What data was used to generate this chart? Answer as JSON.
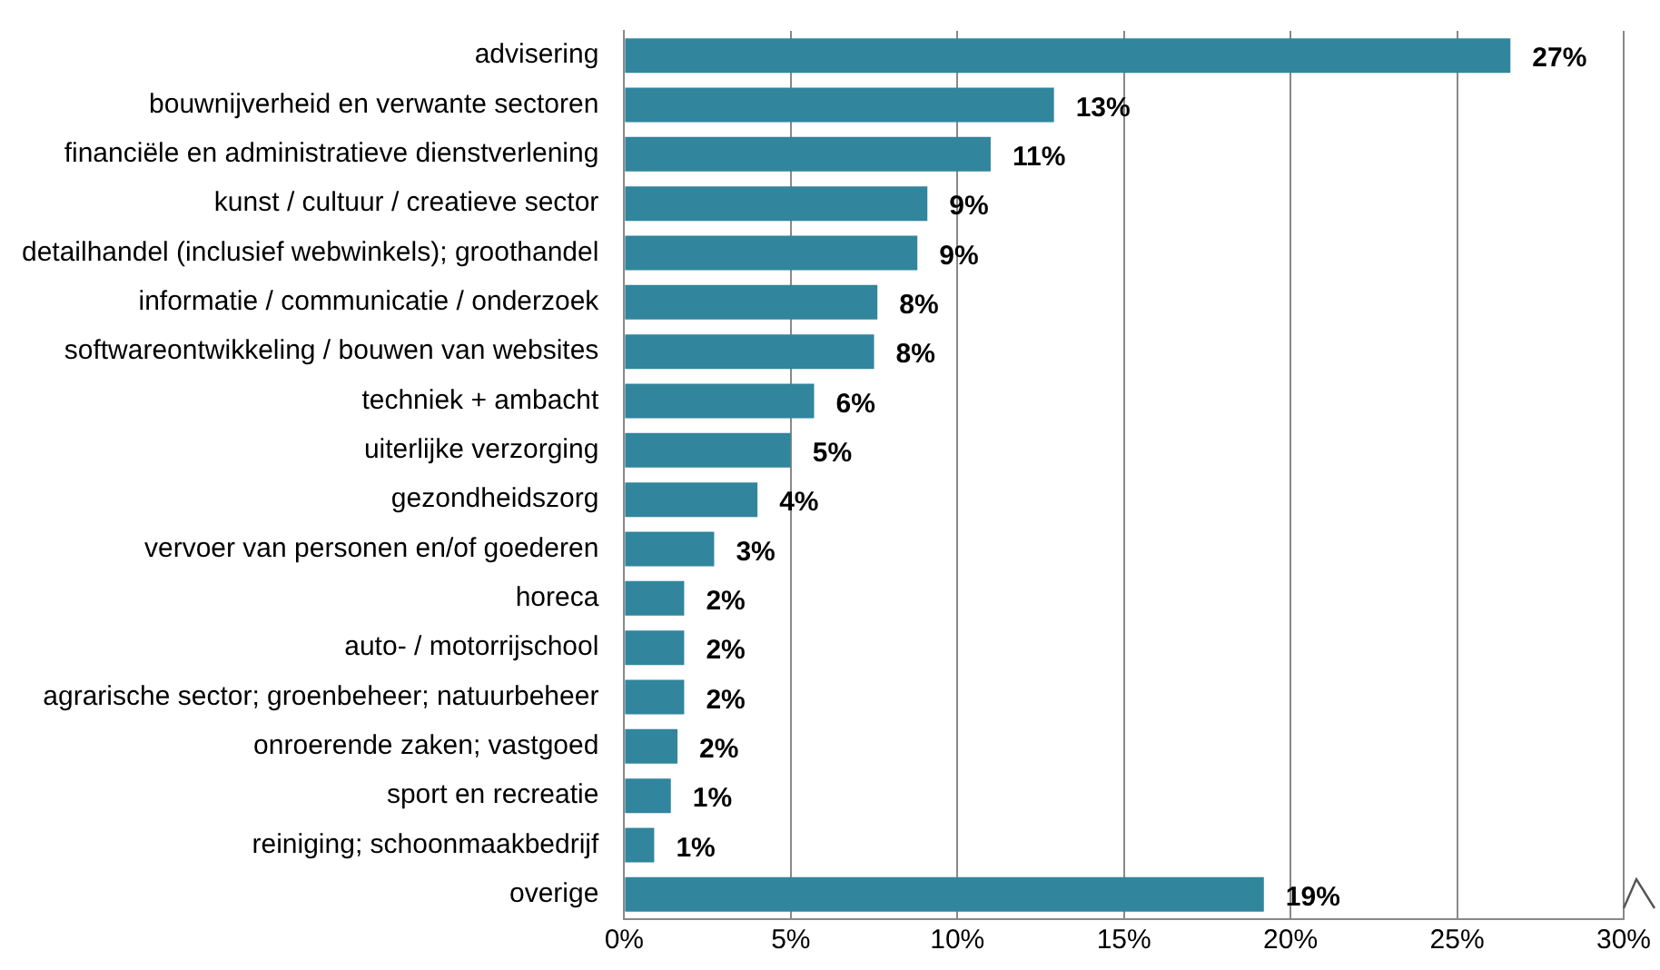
{
  "chart_data": {
    "type": "bar",
    "orientation": "horizontal",
    "color": "#31859c",
    "grid": "x",
    "categories": [
      "advisering",
      "bouwnijverheid en verwante sectoren",
      "financiële en administratieve dienstverlening",
      "kunst / cultuur / creatieve sector",
      "detailhandel (inclusief webwinkels); groothandel",
      "informatie / communicatie / onderzoek",
      "softwareontwikkeling / bouwen van websites",
      "techniek + ambacht",
      "uiterlijke verzorging",
      "gezondheidszorg",
      "vervoer van personen en/of goederen",
      "horeca",
      "auto- / motorrijschool",
      "agrarische sector; groenbeheer; natuurbeheer",
      "onroerende zaken; vastgoed",
      "sport en recreatie",
      "reiniging; schoonmaakbedrijf",
      "overige"
    ],
    "values": [
      26.6,
      12.9,
      11.0,
      9.1,
      8.8,
      7.6,
      7.5,
      5.7,
      5.0,
      4.0,
      2.7,
      1.8,
      1.8,
      1.8,
      1.6,
      1.4,
      0.9,
      19.2
    ],
    "value_labels": [
      "27%",
      "13%",
      "11%",
      "9%",
      "9%",
      "8%",
      "8%",
      "6%",
      "5%",
      "4%",
      "3%",
      "2%",
      "2%",
      "2%",
      "2%",
      "1%",
      "1%",
      "19%"
    ],
    "xlim": [
      0,
      30
    ],
    "xticks": [
      {
        "value": 0,
        "label": "0%"
      },
      {
        "value": 5,
        "label": "5%"
      },
      {
        "value": 10,
        "label": "10%"
      },
      {
        "value": 15,
        "label": "15%"
      },
      {
        "value": 20,
        "label": "20%"
      },
      {
        "value": 25,
        "label": "25%"
      },
      {
        "value": 30,
        "label": "30%"
      }
    ]
  }
}
